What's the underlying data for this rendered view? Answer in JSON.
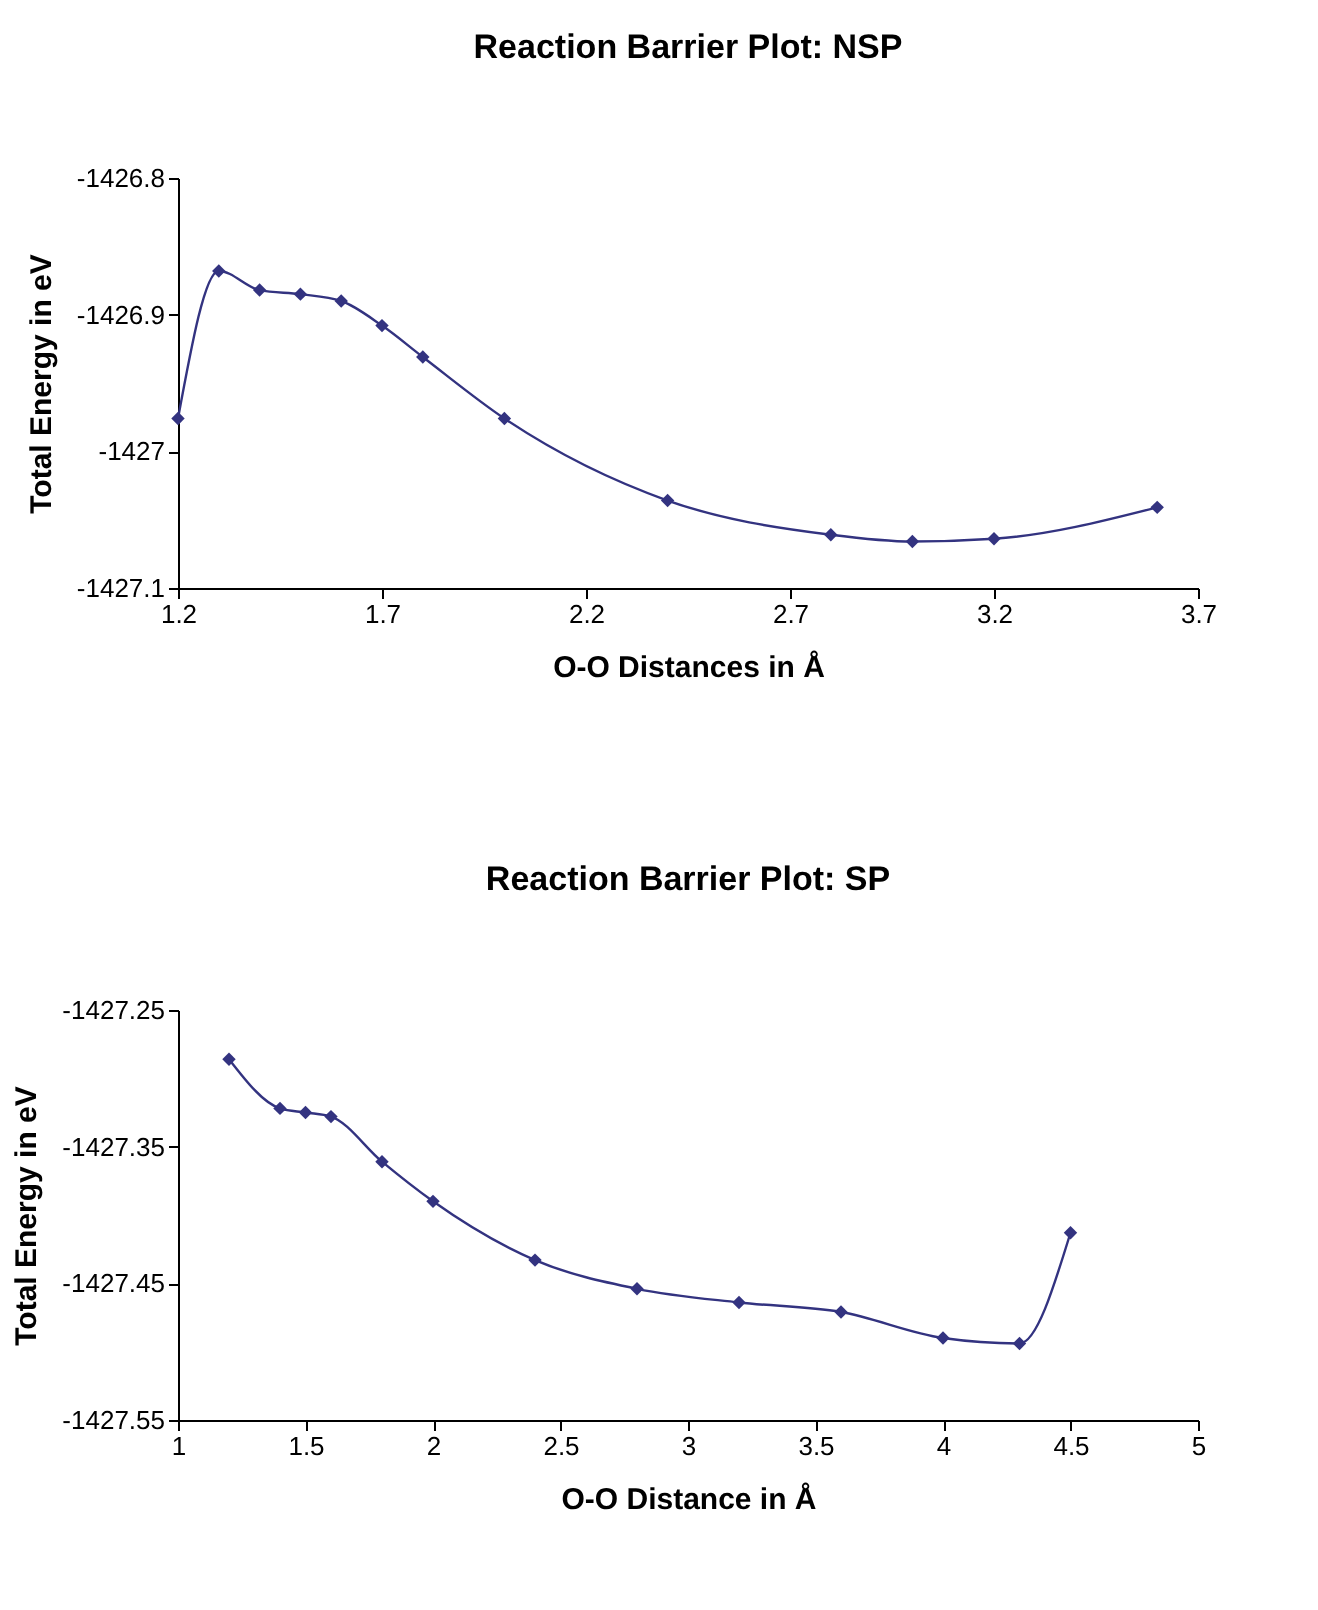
{
  "chart_data": [
    {
      "type": "line",
      "title": "Reaction Barrier Plot: NSP",
      "xlabel": "O-O Distances in Å",
      "ylabel": "Total Energy in eV",
      "marker": "diamond",
      "line_style": "solid",
      "grid": false,
      "x": [
        1.2,
        1.3,
        1.4,
        1.5,
        1.6,
        1.7,
        1.8,
        2.0,
        2.4,
        2.8,
        3.0,
        3.2,
        3.6
      ],
      "series": [
        {
          "color": "#333380",
          "values": [
            -1426.976,
            -1426.868,
            -1426.882,
            -1426.885,
            -1426.89,
            -1426.908,
            -1426.931,
            -1426.976,
            -1427.036,
            -1427.061,
            -1427.066,
            -1427.064,
            -1427.041
          ]
        }
      ],
      "xlim": [
        1.2,
        3.7
      ],
      "xticks": [
        1.2,
        1.7,
        2.2,
        2.7,
        3.2,
        3.7
      ],
      "ylim": [
        -1427.1,
        -1426.8
      ],
      "yticks": [
        -1427.1,
        -1427,
        -1426.9,
        -1426.8
      ]
    },
    {
      "type": "line",
      "title": "Reaction Barrier Plot: SP",
      "xlabel": "O-O Distance in Å",
      "ylabel": "Total Energy in eV",
      "marker": "diamond",
      "line_style": "solid",
      "grid": false,
      "x": [
        1.2,
        1.4,
        1.5,
        1.6,
        1.8,
        2.0,
        2.4,
        2.8,
        3.2,
        3.6,
        4.0,
        4.3,
        4.5
      ],
      "series": [
        {
          "color": "#333380",
          "values": [
            -1427.286,
            -1427.322,
            -1427.325,
            -1427.328,
            -1427.361,
            -1427.39,
            -1427.433,
            -1427.454,
            -1427.464,
            -1427.471,
            -1427.49,
            -1427.494,
            -1427.413
          ]
        }
      ],
      "xlim": [
        1,
        5
      ],
      "xticks": [
        1,
        1.5,
        2,
        2.5,
        3,
        3.5,
        4,
        4.5,
        5
      ],
      "ylim": [
        -1427.55,
        -1427.25
      ],
      "yticks": [
        -1427.55,
        -1427.45,
        -1427.35,
        -1427.25
      ]
    }
  ]
}
